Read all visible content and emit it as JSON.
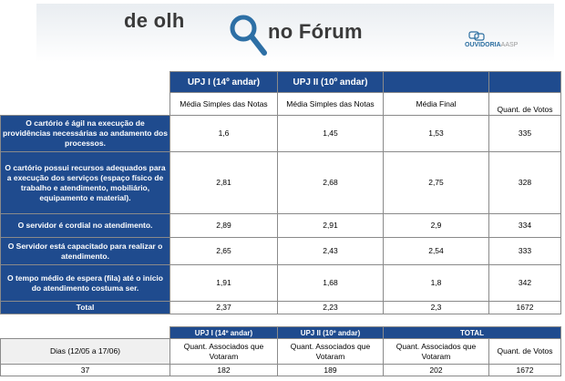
{
  "header": {
    "logo_part1": "de olh",
    "logo_part2": "no Fórum",
    "ouvidoria": "OUVIDORIA",
    "ouvidoria_suffix": "AASP"
  },
  "main_table": {
    "col_headers": [
      "UPJ I (14º andar)",
      "UPJ II (10º andar)"
    ],
    "sub_headers": [
      "Média Simples das Notas",
      "Média Simples das Notas",
      "Média Final",
      "Quant. de Votos"
    ],
    "rows": [
      {
        "label": "O cartório é ágil na execução de providências necessárias ao andamento dos processos.",
        "v1": "1,6",
        "v2": "1,45",
        "v3": "1,53",
        "v4": "335"
      },
      {
        "label": "O cartório possui recursos adequados para a execução dos serviços (espaço físico de trabalho e atendimento, mobiliário, equipamento e material).",
        "v1": "2,81",
        "v2": "2,68",
        "v3": "2,75",
        "v4": "328"
      },
      {
        "label": "O servidor é cordial no atendimento.",
        "v1": "2,89",
        "v2": "2,91",
        "v3": "2,9",
        "v4": "334"
      },
      {
        "label": "O Servidor está capacitado para realizar o atendimento.",
        "v1": "2,65",
        "v2": "2,43",
        "v3": "2,54",
        "v4": "333"
      },
      {
        "label": "O tempo médio de espera (fila) até o início do atendimento costuma ser.",
        "v1": "1,91",
        "v2": "1,68",
        "v3": "1,8",
        "v4": "342"
      }
    ],
    "total": {
      "label": "Total",
      "v1": "2,37",
      "v2": "2,23",
      "v3": "2,3",
      "v4": "1672"
    }
  },
  "votes_table": {
    "col_headers": [
      "UPJ I (14º andar)",
      "UPJ II (10º andar)",
      "TOTAL"
    ],
    "row_label": "Dias (12/05 a 17/06)",
    "sub_headers": [
      "Quant. Associados que Votaram",
      "Quant. Associados que Votaram",
      "Quant. Associados que Votaram",
      "Quant. de Votos"
    ],
    "values": [
      "37",
      "182",
      "189",
      "202",
      "1672"
    ]
  }
}
